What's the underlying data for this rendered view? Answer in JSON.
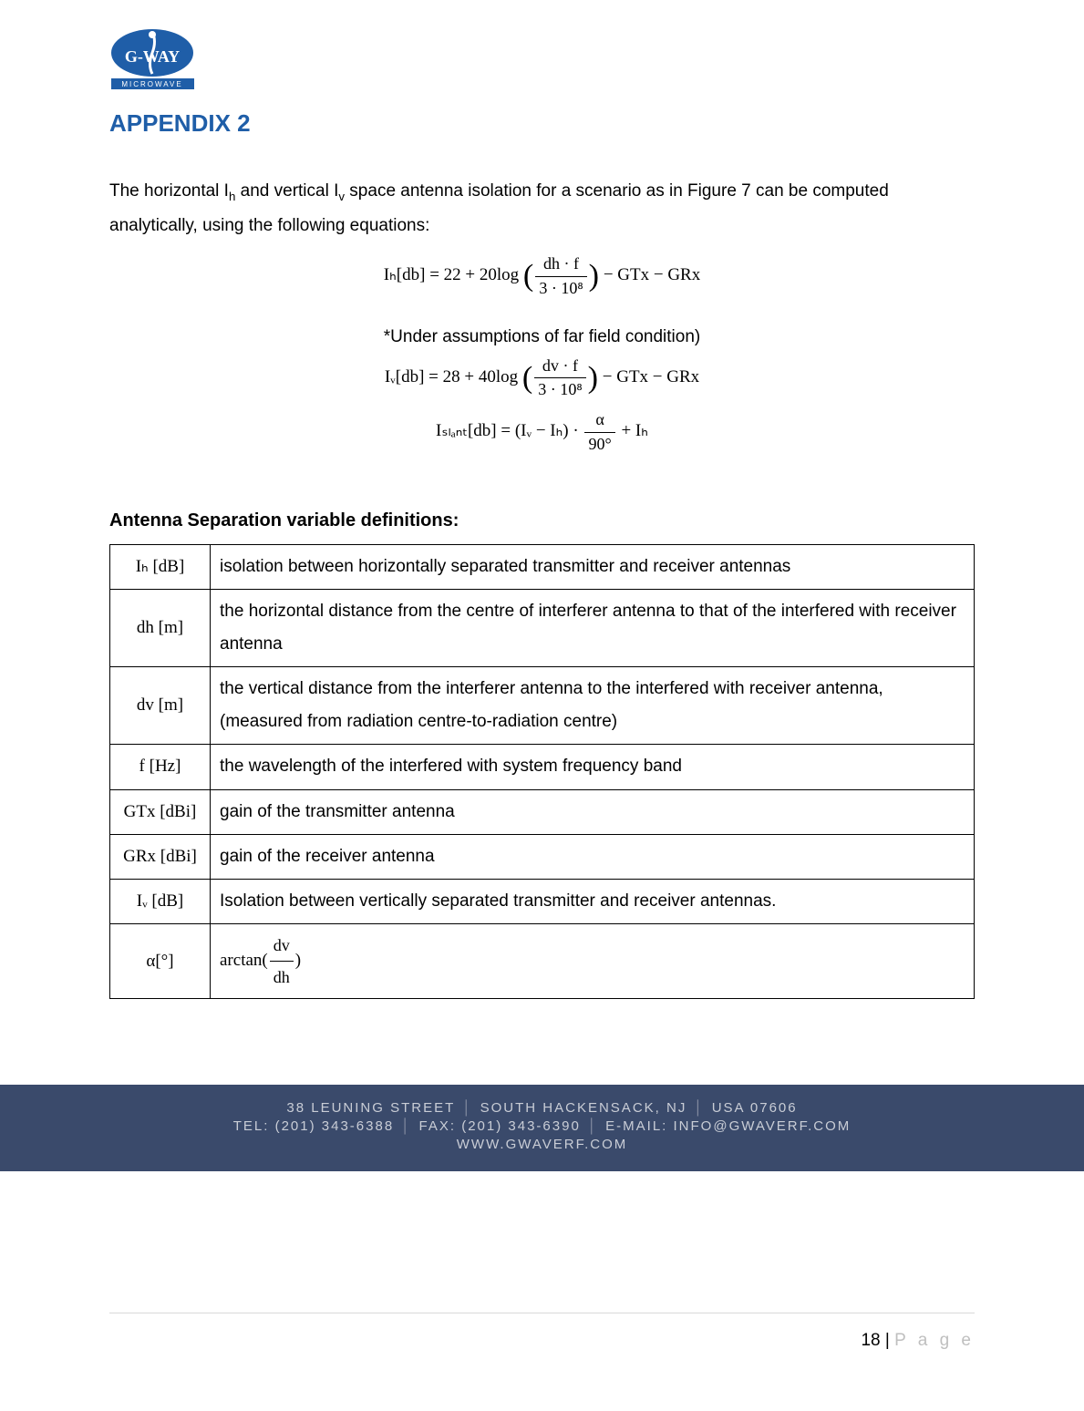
{
  "logo": {
    "brand_top": "G-WAY",
    "brand_bottom": "MICROWAVE",
    "oval_fill": "#1f5ea8",
    "text_color": "#ffffff",
    "bottom_bar_color": "#1f5ea8"
  },
  "title": "APPENDIX 2",
  "title_color": "#1f5ea8",
  "intro": "The horizontal Iₕ and vertical Iᵥ space antenna isolation for a scenario as in Figure 7 can be computed analytically, using the following equations:",
  "equations": {
    "ih": {
      "lhs": "Iₕ[db] =",
      "const": "22 + 20log",
      "frac_num": "dh · f",
      "frac_den": "3 · 10⁸",
      "tail": "− GTx − GRx"
    },
    "note": "*Under assumptions of far field condition)",
    "iv": {
      "lhs": "Iᵥ[db] =",
      "const": "28 + 40log",
      "frac_num": "dv · f",
      "frac_den": "3 · 10⁸",
      "tail": "− GTx − GRx"
    },
    "islant": {
      "lhs": "Iₛₗₐₙₜ[db] =",
      "mid": "(Iᵥ − Iₕ) ·",
      "frac_num": "α",
      "frac_den": "90°",
      "tail": "+ Iₕ"
    }
  },
  "defs_heading": "Antenna Separation variable definitions:",
  "defs": [
    {
      "sym": "Iₕ [dB]",
      "desc": "isolation between horizontally separated transmitter and receiver antennas"
    },
    {
      "sym": "dh [m]",
      "desc": "the horizontal distance from the centre of interferer antenna to that of the interfered with receiver antenna"
    },
    {
      "sym": "dv [m]",
      "desc": "the vertical distance from the interferer antenna to the interfered with receiver antenna, (measured from radiation centre-to-radiation centre)"
    },
    {
      "sym": "f [Hz]",
      "desc": "the wavelength of the interfered with system frequency band"
    },
    {
      "sym": "GTx [dBi]",
      "desc": "gain of the transmitter antenna"
    },
    {
      "sym": "GRx [dBi]",
      "desc": "gain of the receiver antenna"
    },
    {
      "sym": "Iᵥ [dB]",
      "desc": "Isolation between vertically separated transmitter and receiver antennas."
    },
    {
      "sym": "α[°]",
      "desc_math": {
        "pre": "arctan(",
        "num": "dv",
        "den": "dh",
        "post": ")"
      }
    }
  ],
  "footer": {
    "band_bg": "#3a4a6b",
    "band_text_color": "#c9cdd6",
    "line1_a": "38 Leuning Street",
    "line1_b": "South Hackensack, NJ",
    "line1_c": "USA 07606",
    "line2_a": "Tel: (201) 343-6388",
    "line2_b": "Fax: (201) 343-6390",
    "line2_c": "E-Mail: info@gwaverf.com",
    "line3": "www.gwaverf.com"
  },
  "page_number": "18",
  "page_label": "P a g e"
}
